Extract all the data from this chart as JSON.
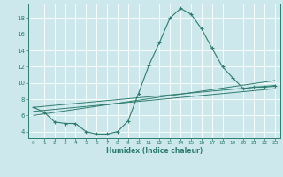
{
  "background_color": "#cce8ec",
  "grid_color": "#ffffff",
  "line_color": "#2e7d6e",
  "xlabel": "Humidex (Indice chaleur)",
  "xlim": [
    -0.5,
    23.5
  ],
  "ylim": [
    3.2,
    19.8
  ],
  "yticks": [
    4,
    6,
    8,
    10,
    12,
    14,
    16,
    18
  ],
  "xticks": [
    0,
    1,
    2,
    3,
    4,
    5,
    6,
    7,
    8,
    9,
    10,
    11,
    12,
    13,
    14,
    15,
    16,
    17,
    18,
    19,
    20,
    21,
    22,
    23
  ],
  "series_main": {
    "x": [
      0,
      1,
      2,
      3,
      4,
      5,
      6,
      7,
      8,
      9,
      10,
      11,
      12,
      13,
      14,
      15,
      16,
      17,
      18,
      19,
      20,
      21,
      22,
      23
    ],
    "y": [
      7.0,
      6.4,
      5.2,
      5.0,
      5.0,
      4.0,
      3.7,
      3.7,
      4.0,
      5.3,
      8.7,
      12.2,
      15.0,
      18.0,
      19.2,
      18.5,
      16.7,
      14.3,
      12.0,
      10.6,
      9.3,
      9.5,
      9.5,
      9.6
    ]
  },
  "trend_lines": [
    {
      "x": [
        0,
        23
      ],
      "y": [
        7.0,
        9.7
      ]
    },
    {
      "x": [
        0,
        23
      ],
      "y": [
        6.5,
        9.3
      ]
    },
    {
      "x": [
        0,
        23
      ],
      "y": [
        6.0,
        10.3
      ]
    }
  ]
}
